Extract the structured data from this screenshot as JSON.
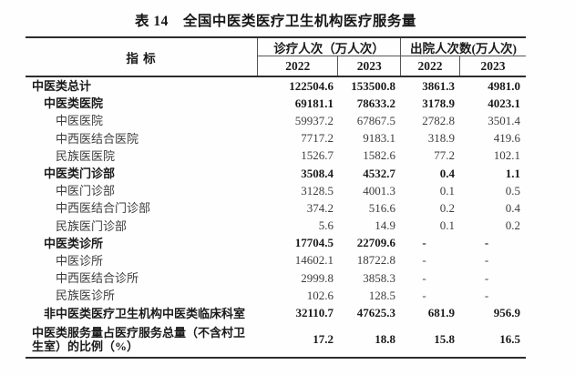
{
  "title": "表 14　全国中医类医疗卫生机构医疗服务量",
  "table": {
    "header": {
      "indicator": "指 标",
      "groups": [
        {
          "label": "诊疗人次（万人次）",
          "years": [
            "2022",
            "2023"
          ]
        },
        {
          "label": "出院人次数(万人次)",
          "years": [
            "2022",
            "2023"
          ]
        }
      ]
    },
    "rows": [
      {
        "label": "中医类总计",
        "indent": 0,
        "bold": true,
        "tall": false,
        "values": [
          "122504.6",
          "153500.8",
          "3861.3",
          "4981.0"
        ]
      },
      {
        "label": "中医类医院",
        "indent": 1,
        "bold": true,
        "tall": false,
        "values": [
          "69181.1",
          "78633.2",
          "3178.9",
          "4023.1"
        ]
      },
      {
        "label": "中医医院",
        "indent": 2,
        "bold": false,
        "tall": false,
        "values": [
          "59937.2",
          "67867.5",
          "2782.8",
          "3501.4"
        ]
      },
      {
        "label": "中西医结合医院",
        "indent": 2,
        "bold": false,
        "tall": false,
        "values": [
          "7717.2",
          "9183.1",
          "318.9",
          "419.6"
        ]
      },
      {
        "label": "民族医医院",
        "indent": 2,
        "bold": false,
        "tall": false,
        "values": [
          "1526.7",
          "1582.6",
          "77.2",
          "102.1"
        ]
      },
      {
        "label": "中医类门诊部",
        "indent": 1,
        "bold": true,
        "tall": false,
        "values": [
          "3508.4",
          "4532.7",
          "0.4",
          "1.1"
        ]
      },
      {
        "label": "中医门诊部",
        "indent": 2,
        "bold": false,
        "tall": false,
        "values": [
          "3128.5",
          "4001.3",
          "0.1",
          "0.5"
        ]
      },
      {
        "label": "中西医结合门诊部",
        "indent": 2,
        "bold": false,
        "tall": false,
        "values": [
          "374.2",
          "516.6",
          "0.2",
          "0.4"
        ]
      },
      {
        "label": "民族医门诊部",
        "indent": 2,
        "bold": false,
        "tall": false,
        "values": [
          "5.6",
          "14.9",
          "0.1",
          "0.2"
        ]
      },
      {
        "label": "中医类诊所",
        "indent": 1,
        "bold": true,
        "tall": false,
        "values": [
          "17704.5",
          "22709.6",
          "-",
          "-"
        ]
      },
      {
        "label": "中医诊所",
        "indent": 2,
        "bold": false,
        "tall": false,
        "values": [
          "14602.1",
          "18722.8",
          "-",
          "-"
        ]
      },
      {
        "label": "中西医结合诊所",
        "indent": 2,
        "bold": false,
        "tall": false,
        "values": [
          "2999.8",
          "3858.3",
          "-",
          "-"
        ]
      },
      {
        "label": "民族医诊所",
        "indent": 2,
        "bold": false,
        "tall": false,
        "values": [
          "102.6",
          "128.5",
          "-",
          "-"
        ]
      },
      {
        "label": "非中医类医疗卫生机构中医类临床科室",
        "indent": 1,
        "bold": true,
        "tall": false,
        "values": [
          "32110.7",
          "47625.3",
          "681.9",
          "956.9"
        ]
      },
      {
        "label": "中医类服务量占医疗服务总量（不含村卫生室）的比例（%）",
        "indent": 0,
        "bold": true,
        "tall": true,
        "values": [
          "17.2",
          "18.8",
          "15.8",
          "16.5"
        ]
      }
    ]
  },
  "colors": {
    "text_bold": "#1a1a1a",
    "text_regular": "#3c3c3c",
    "thick_rule": "#2d2d2d",
    "thin_rule": "#555555",
    "background": "#fefefe"
  }
}
